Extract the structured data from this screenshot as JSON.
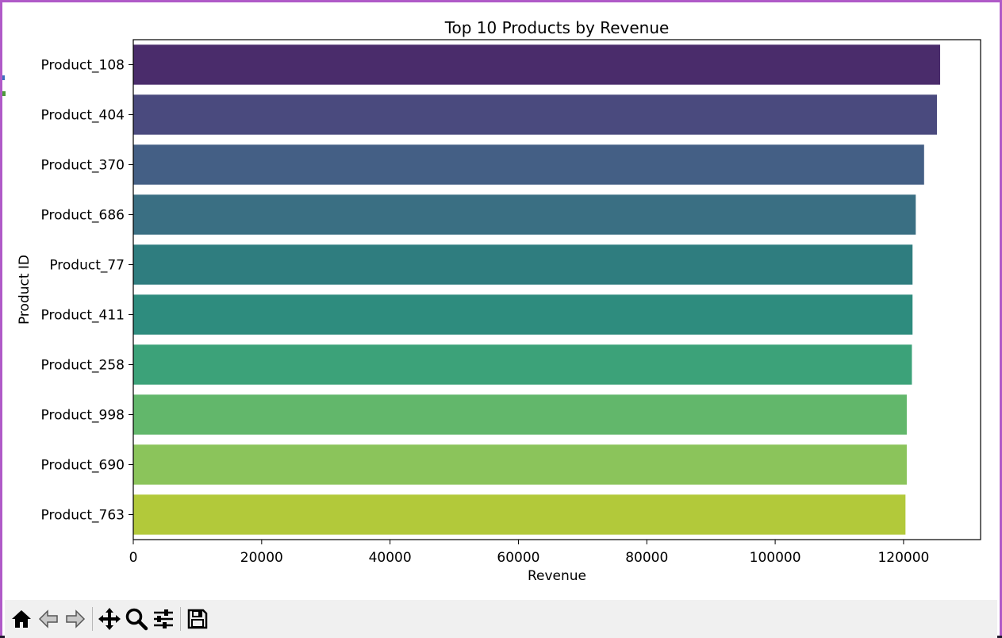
{
  "window": {
    "accent_color": "#b05ac8"
  },
  "toolbar": {
    "buttons": [
      {
        "name": "home-icon",
        "label": "Home"
      },
      {
        "name": "back-icon",
        "label": "Back"
      },
      {
        "name": "forward-icon",
        "label": "Forward"
      },
      {
        "name": "pan-icon",
        "label": "Pan"
      },
      {
        "name": "zoom-icon",
        "label": "Zoom"
      },
      {
        "name": "configure-subplots-icon",
        "label": "Configure subplots"
      },
      {
        "name": "save-icon",
        "label": "Save"
      }
    ]
  },
  "chart_data": {
    "type": "bar",
    "orientation": "horizontal",
    "title": "Top 10 Products by Revenue",
    "xlabel": "Revenue",
    "ylabel": "Product ID",
    "categories": [
      "Product_108",
      "Product_404",
      "Product_370",
      "Product_686",
      "Product_77",
      "Product_411",
      "Product_258",
      "Product_998",
      "Product_690",
      "Product_763"
    ],
    "values": [
      125700,
      125200,
      123200,
      121900,
      121400,
      121400,
      121300,
      120500,
      120500,
      120300
    ],
    "colors": [
      "#4a2c6b",
      "#4a4a7e",
      "#445f85",
      "#3a6f83",
      "#2f7d7f",
      "#2e8c7e",
      "#3ca279",
      "#62b76b",
      "#8bc45b",
      "#b2c93a"
    ],
    "xlim": [
      0,
      132000
    ],
    "xticks": [
      0,
      20000,
      40000,
      60000,
      80000,
      100000,
      120000
    ],
    "xtick_labels": [
      "0",
      "20000",
      "40000",
      "60000",
      "80000",
      "100000",
      "120000"
    ],
    "grid": false,
    "legend": "none"
  }
}
